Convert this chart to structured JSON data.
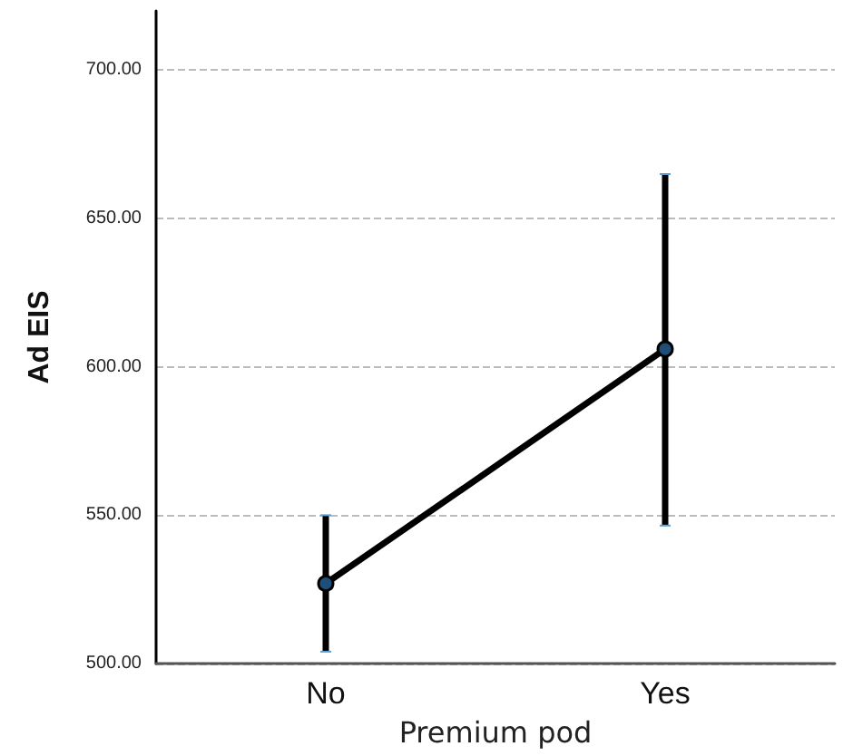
{
  "chart_data": {
    "type": "line",
    "xlabel": "Premium pod",
    "ylabel": "Ad EIS",
    "categories": [
      "No",
      "Yes"
    ],
    "series": [
      {
        "color": "#000000",
        "values": [
          527,
          606
        ],
        "errors": [
          [
            504,
            550
          ],
          [
            546.5,
            665
          ]
        ]
      }
    ],
    "ylim": [
      500,
      720
    ],
    "yticks": [
      {
        "value": 500,
        "label": "500.00"
      },
      {
        "value": 550,
        "label": "550.00"
      },
      {
        "value": 600,
        "label": "600.00"
      },
      {
        "value": 650,
        "label": "650.00"
      },
      {
        "value": 700,
        "label": "700.00"
      }
    ],
    "grid": "y",
    "marker": "circle",
    "line_style": "solid"
  }
}
